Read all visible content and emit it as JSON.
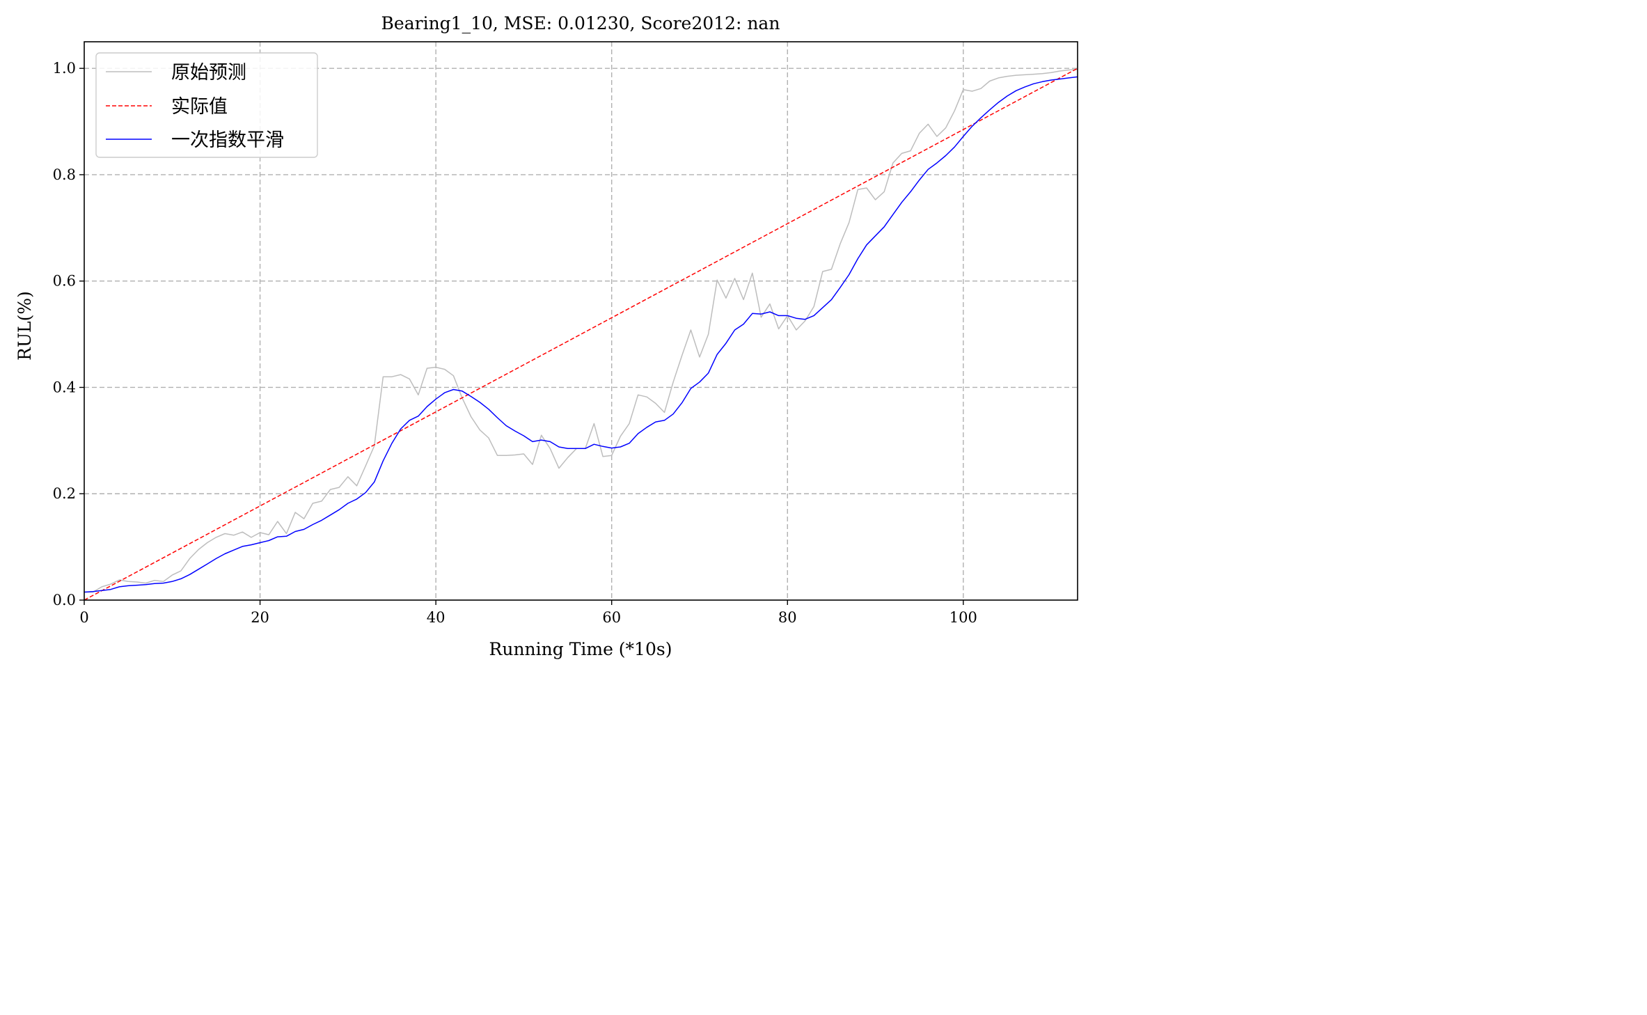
{
  "chart_data": {
    "type": "line",
    "title": "Bearing1_10, MSE: 0.01230, Score2012: nan",
    "xlabel": "Running Time (*10s)",
    "ylabel": "RUL(%)",
    "xlim": [
      0,
      113
    ],
    "ylim": [
      0.0,
      1.05
    ],
    "xticks": [
      0,
      20,
      40,
      60,
      80,
      100
    ],
    "yticks": [
      0.0,
      0.2,
      0.4,
      0.6,
      0.8,
      1.0
    ],
    "xtick_labels": [
      "0",
      "20",
      "40",
      "60",
      "80",
      "100"
    ],
    "ytick_labels": [
      "0.0",
      "0.2",
      "0.4",
      "0.6",
      "0.8",
      "1.0"
    ],
    "grid": true,
    "legend_position": "top-left",
    "series": [
      {
        "name": "原始预测",
        "color": "#bdbdbd",
        "style": "solid",
        "points": [
          [
            0,
            0.015
          ],
          [
            1,
            0.015
          ],
          [
            2,
            0.025
          ],
          [
            3,
            0.03
          ],
          [
            4,
            0.038
          ],
          [
            5,
            0.035
          ],
          [
            6,
            0.034
          ],
          [
            7,
            0.032
          ],
          [
            8,
            0.037
          ],
          [
            9,
            0.035
          ],
          [
            10,
            0.047
          ],
          [
            11,
            0.055
          ],
          [
            12,
            0.078
          ],
          [
            13,
            0.095
          ],
          [
            14,
            0.108
          ],
          [
            15,
            0.118
          ],
          [
            16,
            0.125
          ],
          [
            17,
            0.122
          ],
          [
            18,
            0.128
          ],
          [
            19,
            0.118
          ],
          [
            20,
            0.127
          ],
          [
            21,
            0.123
          ],
          [
            22,
            0.148
          ],
          [
            23,
            0.125
          ],
          [
            24,
            0.165
          ],
          [
            25,
            0.153
          ],
          [
            26,
            0.182
          ],
          [
            27,
            0.186
          ],
          [
            28,
            0.208
          ],
          [
            29,
            0.212
          ],
          [
            30,
            0.232
          ],
          [
            31,
            0.215
          ],
          [
            32,
            0.252
          ],
          [
            33,
            0.29
          ],
          [
            34,
            0.42
          ],
          [
            35,
            0.42
          ],
          [
            36,
            0.424
          ],
          [
            37,
            0.416
          ],
          [
            38,
            0.386
          ],
          [
            39,
            0.436
          ],
          [
            40,
            0.438
          ],
          [
            41,
            0.434
          ],
          [
            42,
            0.422
          ],
          [
            43,
            0.38
          ],
          [
            44,
            0.345
          ],
          [
            45,
            0.32
          ],
          [
            46,
            0.305
          ],
          [
            47,
            0.272
          ],
          [
            48,
            0.272
          ],
          [
            49,
            0.273
          ],
          [
            50,
            0.275
          ],
          [
            51,
            0.255
          ],
          [
            52,
            0.31
          ],
          [
            53,
            0.285
          ],
          [
            54,
            0.248
          ],
          [
            55,
            0.268
          ],
          [
            56,
            0.285
          ],
          [
            57,
            0.285
          ],
          [
            58,
            0.332
          ],
          [
            59,
            0.27
          ],
          [
            60,
            0.272
          ],
          [
            61,
            0.308
          ],
          [
            62,
            0.332
          ],
          [
            63,
            0.386
          ],
          [
            64,
            0.382
          ],
          [
            65,
            0.37
          ],
          [
            66,
            0.353
          ],
          [
            67,
            0.41
          ],
          [
            68,
            0.46
          ],
          [
            69,
            0.508
          ],
          [
            70,
            0.457
          ],
          [
            71,
            0.5
          ],
          [
            72,
            0.602
          ],
          [
            73,
            0.568
          ],
          [
            74,
            0.605
          ],
          [
            75,
            0.565
          ],
          [
            76,
            0.615
          ],
          [
            77,
            0.532
          ],
          [
            78,
            0.557
          ],
          [
            79,
            0.51
          ],
          [
            80,
            0.535
          ],
          [
            81,
            0.508
          ],
          [
            82,
            0.525
          ],
          [
            83,
            0.552
          ],
          [
            84,
            0.618
          ],
          [
            85,
            0.622
          ],
          [
            86,
            0.67
          ],
          [
            87,
            0.71
          ],
          [
            88,
            0.772
          ],
          [
            89,
            0.775
          ],
          [
            90,
            0.753
          ],
          [
            91,
            0.768
          ],
          [
            92,
            0.822
          ],
          [
            93,
            0.84
          ],
          [
            94,
            0.845
          ],
          [
            95,
            0.878
          ],
          [
            96,
            0.895
          ],
          [
            97,
            0.872
          ],
          [
            98,
            0.888
          ],
          [
            99,
            0.92
          ],
          [
            100,
            0.96
          ],
          [
            101,
            0.957
          ],
          [
            102,
            0.962
          ],
          [
            103,
            0.976
          ],
          [
            104,
            0.982
          ],
          [
            105,
            0.985
          ],
          [
            106,
            0.987
          ],
          [
            107,
            0.988
          ],
          [
            108,
            0.989
          ],
          [
            109,
            0.99
          ],
          [
            110,
            0.992
          ],
          [
            111,
            0.995
          ],
          [
            112,
            0.997
          ],
          [
            113,
            0.998
          ]
        ]
      },
      {
        "name": "实际值",
        "color": "#ff0000",
        "style": "dashed",
        "points": [
          [
            0,
            0.0
          ],
          [
            113,
            1.0
          ]
        ]
      },
      {
        "name": "一次指数平滑",
        "color": "#0000ff",
        "style": "solid",
        "points": [
          [
            0,
            0.015
          ],
          [
            1,
            0.016
          ],
          [
            2,
            0.018
          ],
          [
            3,
            0.02
          ],
          [
            4,
            0.025
          ],
          [
            5,
            0.027
          ],
          [
            6,
            0.028
          ],
          [
            7,
            0.029
          ],
          [
            8,
            0.031
          ],
          [
            9,
            0.032
          ],
          [
            10,
            0.035
          ],
          [
            11,
            0.04
          ],
          [
            12,
            0.048
          ],
          [
            13,
            0.058
          ],
          [
            14,
            0.068
          ],
          [
            15,
            0.078
          ],
          [
            16,
            0.087
          ],
          [
            17,
            0.094
          ],
          [
            18,
            0.101
          ],
          [
            19,
            0.104
          ],
          [
            20,
            0.108
          ],
          [
            21,
            0.112
          ],
          [
            22,
            0.119
          ],
          [
            23,
            0.12
          ],
          [
            24,
            0.129
          ],
          [
            25,
            0.133
          ],
          [
            26,
            0.142
          ],
          [
            27,
            0.15
          ],
          [
            28,
            0.16
          ],
          [
            29,
            0.17
          ],
          [
            30,
            0.182
          ],
          [
            31,
            0.19
          ],
          [
            32,
            0.202
          ],
          [
            33,
            0.222
          ],
          [
            34,
            0.262
          ],
          [
            35,
            0.295
          ],
          [
            36,
            0.322
          ],
          [
            37,
            0.338
          ],
          [
            38,
            0.346
          ],
          [
            39,
            0.364
          ],
          [
            40,
            0.378
          ],
          [
            41,
            0.39
          ],
          [
            42,
            0.396
          ],
          [
            43,
            0.393
          ],
          [
            44,
            0.383
          ],
          [
            45,
            0.372
          ],
          [
            46,
            0.359
          ],
          [
            47,
            0.343
          ],
          [
            48,
            0.328
          ],
          [
            49,
            0.318
          ],
          [
            50,
            0.309
          ],
          [
            51,
            0.298
          ],
          [
            52,
            0.301
          ],
          [
            53,
            0.298
          ],
          [
            54,
            0.288
          ],
          [
            55,
            0.285
          ],
          [
            56,
            0.285
          ],
          [
            57,
            0.285
          ],
          [
            58,
            0.293
          ],
          [
            59,
            0.289
          ],
          [
            60,
            0.286
          ],
          [
            61,
            0.288
          ],
          [
            62,
            0.295
          ],
          [
            63,
            0.313
          ],
          [
            64,
            0.325
          ],
          [
            65,
            0.335
          ],
          [
            66,
            0.338
          ],
          [
            67,
            0.35
          ],
          [
            68,
            0.371
          ],
          [
            69,
            0.398
          ],
          [
            70,
            0.41
          ],
          [
            71,
            0.427
          ],
          [
            72,
            0.462
          ],
          [
            73,
            0.483
          ],
          [
            74,
            0.508
          ],
          [
            75,
            0.519
          ],
          [
            76,
            0.539
          ],
          [
            77,
            0.538
          ],
          [
            78,
            0.542
          ],
          [
            79,
            0.535
          ],
          [
            80,
            0.535
          ],
          [
            81,
            0.53
          ],
          [
            82,
            0.528
          ],
          [
            83,
            0.535
          ],
          [
            84,
            0.55
          ],
          [
            85,
            0.565
          ],
          [
            86,
            0.588
          ],
          [
            87,
            0.612
          ],
          [
            88,
            0.642
          ],
          [
            89,
            0.668
          ],
          [
            90,
            0.685
          ],
          [
            91,
            0.702
          ],
          [
            92,
            0.725
          ],
          [
            93,
            0.748
          ],
          [
            94,
            0.768
          ],
          [
            95,
            0.79
          ],
          [
            96,
            0.81
          ],
          [
            97,
            0.822
          ],
          [
            98,
            0.836
          ],
          [
            99,
            0.852
          ],
          [
            100,
            0.872
          ],
          [
            101,
            0.891
          ],
          [
            102,
            0.907
          ],
          [
            103,
            0.922
          ],
          [
            104,
            0.936
          ],
          [
            105,
            0.948
          ],
          [
            106,
            0.958
          ],
          [
            107,
            0.965
          ],
          [
            108,
            0.971
          ],
          [
            109,
            0.975
          ],
          [
            110,
            0.978
          ],
          [
            111,
            0.98
          ],
          [
            112,
            0.982
          ],
          [
            113,
            0.984
          ]
        ]
      }
    ]
  }
}
